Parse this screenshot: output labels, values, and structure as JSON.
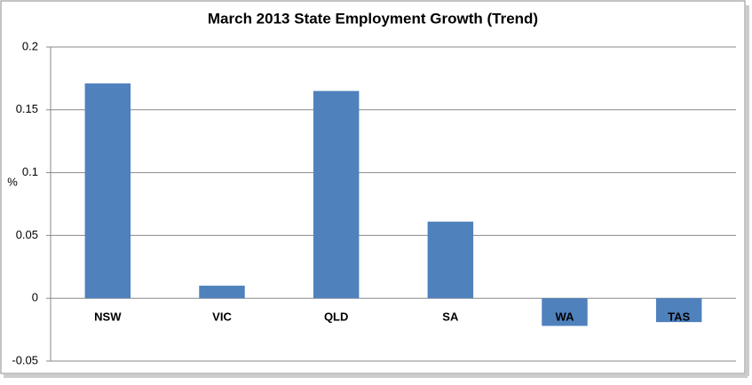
{
  "chart_data": {
    "type": "bar",
    "title": "March 2013 State Employment Growth (Trend)",
    "y_label": "%",
    "categories": [
      "NSW",
      "VIC",
      "QLD",
      "SA",
      "WA",
      "TAS"
    ],
    "values": [
      0.171,
      0.01,
      0.165,
      0.061,
      -0.022,
      -0.019
    ],
    "color": "#4f81bd",
    "ylim": [
      -0.05,
      0.2
    ],
    "yticks": [
      -0.05,
      0,
      0.05,
      0.1,
      0.15,
      0.2
    ],
    "grid": true
  }
}
